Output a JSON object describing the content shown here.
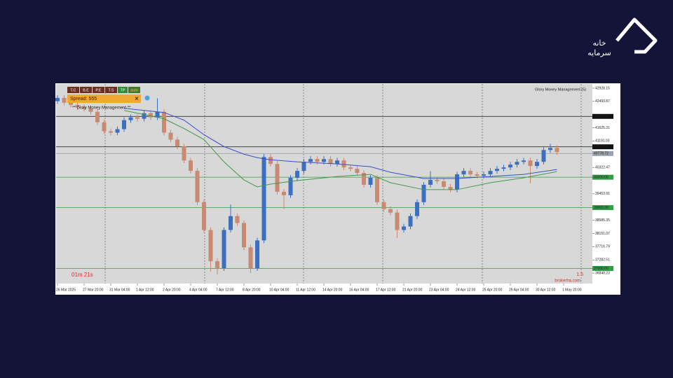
{
  "chart_data": {
    "type": "candlestick",
    "categories": [
      "26 Mar 2025",
      null,
      null,
      null,
      "27 Mar 20:00",
      null,
      null,
      null,
      "31 Mar 04:00",
      null,
      null,
      null,
      "1 Apr 12:00",
      null,
      null,
      null,
      "2 Apr 20:00",
      null,
      null,
      null,
      "4 Apr 04:00",
      null,
      null,
      null,
      "7 Apr 12:00",
      null,
      null,
      null,
      "8 Apr 20:00",
      null,
      null,
      null,
      "10 Apr 04:00",
      null,
      null,
      null,
      "11 Apr 12:00",
      null,
      null,
      null,
      "14 Apr 20:00",
      null,
      null,
      null,
      "16 Apr 04:00",
      null,
      null,
      null,
      "17 Apr 12:00",
      null,
      null,
      null,
      "21 Apr 20:00",
      null,
      null,
      null,
      "23 Apr 04:00",
      null,
      null,
      null,
      "24 Apr 12:00",
      null,
      null,
      null,
      "25 Apr 20:00",
      null,
      null,
      null,
      "29 Apr 04:00",
      null,
      null,
      null,
      "30 Apr 12:00",
      null,
      null,
      null,
      "1 May 20:00"
    ],
    "open": [
      42500,
      42608,
      42450,
      42380,
      42300,
      42250,
      42151,
      41808,
      41511,
      41465,
      41580,
      41877,
      41968,
      41922,
      42105,
      41968,
      42151,
      41465,
      41237,
      41008,
      40551,
      40208,
      39180,
      38265,
      37237,
      37008,
      38265,
      38722,
      38494,
      37694,
      37008,
      37922,
      40665,
      40437,
      39522,
      39408,
      39980,
      40208,
      40505,
      40597,
      40505,
      40597,
      40437,
      40551,
      40322,
      40277,
      40140,
      39751,
      39980,
      39180,
      38951,
      38837,
      38265,
      38380,
      38722,
      39180,
      39751,
      39911,
      39865,
      39682,
      39591,
      40094,
      40208,
      40094,
      40048,
      40094,
      40208,
      40277,
      40322,
      40414,
      40505,
      40551,
      40368,
      40505,
      40894,
      40962,
      null
    ],
    "high": [
      42700,
      42700,
      42540,
      42470,
      42390,
      42340,
      42240,
      41900,
      41600,
      41670,
      41970,
      42060,
      42060,
      42200,
      42200,
      42600,
      42240,
      41560,
      41330,
      41100,
      40640,
      40300,
      39270,
      38350,
      37330,
      38350,
      39100,
      38810,
      38580,
      37780,
      38010,
      40760,
      40760,
      40530,
      39610,
      40070,
      40300,
      40600,
      40690,
      40690,
      40690,
      40690,
      40640,
      40640,
      40410,
      40370,
      40230,
      40070,
      40070,
      39270,
      39040,
      38930,
      38470,
      38810,
      39270,
      39840,
      40200,
      40000,
      39950,
      39770,
      40180,
      40300,
      40300,
      40180,
      40180,
      40300,
      40370,
      40410,
      40500,
      40600,
      40640,
      40640,
      40600,
      40990,
      41100,
      41050,
      null
    ],
    "low": [
      42410,
      42360,
      42290,
      42210,
      42160,
      42060,
      41720,
      41420,
      41380,
      41380,
      41490,
      41790,
      41830,
      41830,
      41880,
      41880,
      41380,
      41150,
      40920,
      40460,
      40120,
      39090,
      38180,
      36900,
      36800,
      36920,
      38180,
      38400,
      37600,
      36850,
      36920,
      37830,
      40350,
      39430,
      38950,
      39320,
      39890,
      40120,
      40420,
      40420,
      40420,
      40350,
      40350,
      40230,
      40190,
      40050,
      39660,
      39660,
      39090,
      38860,
      38750,
      38000,
      38180,
      38290,
      38630,
      39090,
      39660,
      39780,
      39590,
      39500,
      39500,
      40000,
      40000,
      39960,
      39960,
      40000,
      40120,
      40190,
      40230,
      40320,
      40420,
      39800,
      40280,
      40420,
      40800,
      40730,
      null
    ],
    "close": [
      42608,
      42450,
      42380,
      42300,
      42250,
      42151,
      41808,
      41511,
      41465,
      41580,
      41877,
      41968,
      41922,
      42105,
      41968,
      42151,
      41465,
      41237,
      41008,
      40551,
      40208,
      39180,
      38265,
      37237,
      37008,
      38265,
      38722,
      38494,
      37694,
      37008,
      37922,
      40665,
      40437,
      39522,
      39408,
      39980,
      40208,
      40505,
      40597,
      40505,
      40597,
      40437,
      40551,
      40322,
      40277,
      40140,
      39751,
      39980,
      39180,
      38951,
      38837,
      38265,
      38380,
      38722,
      39180,
      39751,
      39911,
      39865,
      39682,
      39591,
      40094,
      40208,
      40094,
      40048,
      40094,
      40208,
      40277,
      40322,
      40414,
      40505,
      40551,
      40368,
      40505,
      40894,
      40962,
      40825,
      null
    ],
    "up_color": "#3d6fc0",
    "down_color": "#c98a72",
    "lines": [
      {
        "color": "#3b4fc8",
        "x": [
          10,
          16,
          19,
          22,
          25,
          28,
          30,
          32,
          36,
          42,
          47,
          50,
          55,
          60,
          65,
          70,
          75
        ],
        "values": [
          42265,
          42128,
          41877,
          41397,
          41008,
          40757,
          40642,
          40574,
          40505,
          40437,
          40345,
          40163,
          39957,
          39957,
          40025,
          40094,
          40254
        ]
      },
      {
        "color": "#3e9a4a",
        "x": [
          10,
          16,
          19,
          22,
          25,
          28,
          30,
          32,
          36,
          42,
          47,
          50,
          55,
          60,
          65,
          70,
          75
        ],
        "values": [
          42197,
          41922,
          41602,
          41237,
          40505,
          39911,
          39682,
          39774,
          39888,
          40025,
          40094,
          39820,
          39591,
          39591,
          39820,
          39980,
          40185
        ]
      }
    ],
    "levels": [
      {
        "value": 42000,
        "label": "42000.00",
        "color": "#111111"
      },
      {
        "value": 41000,
        "label": "41000.00",
        "color": "#111111"
      },
      {
        "value": 40778.72,
        "label": "40778.72",
        "color": "#9aa3ad"
      },
      {
        "value": 40000,
        "label": "40000.00",
        "color": "#2f9e44"
      },
      {
        "value": 39000,
        "label": "39000.00",
        "color": "#2f9e44"
      },
      {
        "value": 37000,
        "label": "37000.00",
        "color": "#2f9e44"
      }
    ],
    "ylim": [
      36505,
      43065
    ],
    "yticks": [
      42928.15,
      42493.87,
      41625.31,
      41191.03,
      40322.47,
      39453.91,
      38585.35,
      38151.07,
      37716.79,
      37282.51,
      36848.23
    ]
  },
  "overlay": {
    "buttons": [
      "T.C",
      "B.E",
      "P.E",
      "T.S",
      "TP",
      "auto"
    ],
    "spread": "Spread: 555",
    "close": "✕",
    "indicator": "** Glory Money Management **",
    "indicator_right": "Glory Money Management (5)",
    "timer": "01m 21s",
    "value": "1.5",
    "watermark": "brokerha.com"
  },
  "logo": {
    "line1": "خانه",
    "line2": "سرمایه"
  }
}
